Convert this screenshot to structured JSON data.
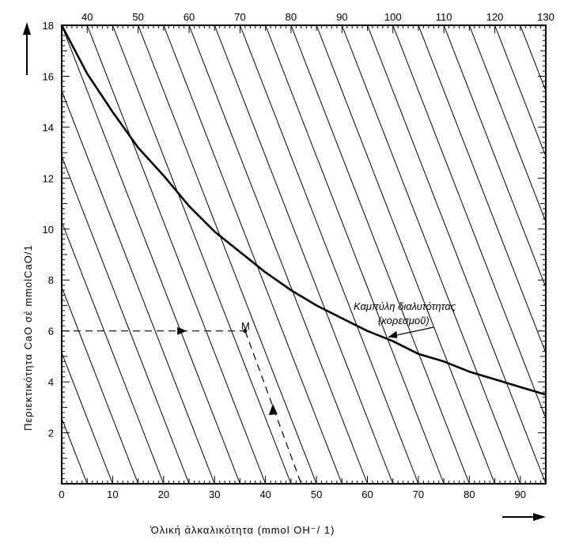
{
  "chart_data": {
    "type": "line",
    "title": "",
    "xlabel": "Ὁλική ἀλκαλικότητα   (mmol  OH⁻/ 1)",
    "ylabel": "Περιεκτικότητα  CaO   σέ   mmolCaO/1",
    "xlim": [
      0,
      95
    ],
    "ylim": [
      0,
      18
    ],
    "x_ticks": [
      "0",
      "10",
      "20",
      "30",
      "40",
      "50",
      "60",
      "70",
      "80",
      "90"
    ],
    "y_ticks": [
      "2",
      "4",
      "6",
      "8",
      "10",
      "12",
      "14",
      "16",
      "18"
    ],
    "top_axis_ticks": [
      "40",
      "50",
      "60",
      "70",
      "80",
      "90",
      "100",
      "110",
      "120",
      "130"
    ],
    "grid": true,
    "series": [
      {
        "role": "solubility-curve",
        "x": [
          0,
          5,
          10,
          15,
          20,
          25,
          30,
          35,
          40,
          45,
          50,
          55,
          60,
          65,
          70,
          75,
          80,
          85,
          90,
          95
        ],
        "y": [
          18.0,
          16.1,
          14.6,
          13.2,
          12.1,
          10.9,
          9.9,
          9.1,
          8.3,
          7.6,
          7.0,
          6.5,
          6.0,
          5.6,
          5.1,
          4.8,
          4.4,
          4.1,
          3.8,
          3.5
        ]
      }
    ],
    "diagonal_lines": {
      "x_at_y0": [
        5,
        10,
        15,
        20,
        25,
        30,
        35,
        40,
        45,
        50,
        55,
        60,
        65,
        70,
        75,
        80,
        85,
        90,
        95,
        100,
        105,
        110,
        115,
        120,
        125,
        130
      ],
      "x_at_y18": [
        -30,
        -25,
        -20,
        -15,
        -10,
        -5,
        0,
        5,
        10,
        15,
        20,
        25,
        30,
        35,
        40,
        45,
        50,
        55,
        60,
        65,
        70,
        75,
        80,
        85,
        90,
        95
      ]
    },
    "annotations": {
      "curve_label_line1": "Καμπύλη διαλυτότητας",
      "curve_label_line2": "(κορεσμοῦ)",
      "point_label": "M",
      "point": {
        "x": 36,
        "y": 6
      },
      "dashed_path": {
        "from_x": 0,
        "y": 6,
        "down_to_x": 47,
        "down_to_y": 0
      }
    }
  }
}
